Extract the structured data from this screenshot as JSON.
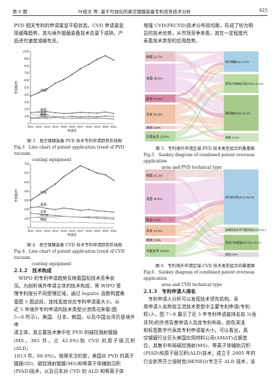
{
  "header": {
    "left": "第 6 期",
    "center": "叶俊文 等: 基于可视化的真空镀膜装备专利竞争技术分析",
    "page": "425"
  },
  "left_col": {
    "intro": [
      "PVD 相关专利的申请量呈平稳状态，CVD 申请量呈",
      "现缓降趋势，其与境外镀膜装备技术总量下成熟，产",
      "品进代速度减缓有关。"
    ],
    "fig3_caption_cn": "图 3　真空镀膜装备 PVD 技术专利申请趋势折线图",
    "fig3_caption_en_1": "Fig.3　Line chart of patent application trend of PVD vacuum",
    "fig3_caption_en_2": "coating equipment",
    "fig4_caption_cn": "图 4　真空镀膜装备 CVD 技术专利申请趋势折线图",
    "fig4_caption_en_1": "Fig.4　Line chart of patent application trend of CVD vacuum",
    "fig4_caption_en_2": "coating equipment",
    "section_title": "2.1.2　技术构成",
    "section_body": [
      "　WIPO 的专利申请趋势反映着国际技术竞争状",
      "况。为剖析境外申请主体的技术构成，将 WIPO 受",
      "理专利按分不同受理区域，通过 logistic 函数构建桑",
      "基图 5 图这段，连线宽度对应专利申请量大小。从",
      "近 5 年境外专利申请的技术类型分流情况来看(图",
      "5~6 所示)，美国、日本、韩国，以及中国台湾仍是境外申",
      "请主体，其主要技术集中在 PVD 的磁控溅射镀膜",
      "(MS，365 件，占 42.6%)和 CVD 的原子层沉积(ALD，",
      "1013 件，68.0%)，值得关注的是，美国对 PVD 的离子",
      "镀膜(ID)、磁控溅射镀膜(MS)和等离子体辅助沉积",
      "(PIAD)技术，以及日本对 CVD 的 ALD 和等离子体"
    ]
  },
  "right_col": {
    "intro": [
      "增强 CVD(PECVD)技术分布较均衡，形成了较为明",
      "显的技术优势，从市场竞争来看，其在一定程度代",
      "表着技术类型的应用趋势。"
    ],
    "fig5_caption_cn": "图 5　专利境外申请区域-PVD 技术类型组合的桑基图",
    "fig5_caption_en_1": "Fig.5　Sankey diagram of combined patent overseas application",
    "fig5_caption_en_2": "area and PVD technical type",
    "fig6_caption_cn": "图 6　专利境外申请区域-CVD 技术类型组合的桑基图",
    "fig6_caption_en_1": "Fig.6　Sankey diagram of combined patent overseas application",
    "fig6_caption_en_2": "area and CVD technical type",
    "section_title": "2.1.3　专利申请人排名",
    "section_body": [
      "　专利申请人分析可以发现技术领先机构。采",
      "用申请人名称前主流技术类型中主要专利申请(专利",
      "权)人，图 7~8 展示了近 5 年专利申请量排名前 5(含",
      "并列)的外资背景申请人及其专利布局，颜色深浅",
      "和标签数字代表其专利申请量大小。可以看出，真",
      "空镀膜行业巨头美国应用材料公司(AMAT)占据首",
      "位，其集中布局磁控溅射(MS)、等离子体辅助沉积",
      "(PIAD)和原子层沉积(ALD)技术；成立于 2005 年的",
      "行业新秀芬兰倍耐克(BENEQ)专注于 ALD 技术，该"
    ]
  },
  "fig3": {
    "chart_data": {
      "type": "line",
      "x": [
        2011,
        2012,
        2013,
        2014,
        2015,
        2016,
        2017,
        2018,
        2019,
        2020,
        2021
      ],
      "xlabel": "申请年",
      "ylabel": "专利数/件",
      "ylim": [
        0,
        1000
      ],
      "yticks": [
        0,
        100,
        200,
        300,
        400,
        500,
        600,
        700,
        800,
        900,
        1000
      ],
      "series": [
        {
          "name": "中国",
          "values": [
            380,
            430,
            480,
            560,
            610,
            680,
            760,
            820,
            890,
            940,
            880
          ],
          "color": "#3a3a3a"
        },
        {
          "name": "美国",
          "values": [
            150,
            160,
            165,
            150,
            140,
            145,
            155,
            150,
            145,
            160,
            140
          ],
          "color": "#5a5a5a"
        },
        {
          "name": "WIPO",
          "values": [
            80,
            85,
            90,
            95,
            90,
            100,
            95,
            100,
            95,
            105,
            100
          ],
          "color": "#777"
        },
        {
          "name": "韩国",
          "values": [
            70,
            75,
            70,
            80,
            75,
            70,
            72,
            68,
            75,
            70,
            60
          ],
          "color": "#999"
        },
        {
          "name": "日本",
          "values": [
            120,
            115,
            110,
            100,
            95,
            90,
            85,
            80,
            82,
            78,
            70
          ],
          "color": "#bbb"
        }
      ]
    }
  },
  "fig4": {
    "chart_data": {
      "type": "line",
      "x": [
        2011,
        2012,
        2013,
        2014,
        2015,
        2016,
        2017,
        2018,
        2019,
        2020,
        2021
      ],
      "xlabel": "申请年",
      "ylabel": "专利数/件",
      "ylim": [
        0,
        700
      ],
      "yticks": [
        0,
        100,
        200,
        300,
        400,
        500,
        600,
        700
      ],
      "series": [
        {
          "name": "中国",
          "values": [
            300,
            360,
            420,
            480,
            560,
            620,
            680,
            640,
            600,
            580,
            520
          ],
          "color": "#3a3a3a"
        },
        {
          "name": "美国",
          "values": [
            220,
            230,
            210,
            200,
            215,
            205,
            190,
            200,
            185,
            180,
            170
          ],
          "color": "#5a5a5a"
        },
        {
          "name": "日本",
          "values": [
            160,
            150,
            140,
            135,
            125,
            120,
            115,
            110,
            105,
            100,
            95
          ],
          "color": "#777"
        },
        {
          "name": "WIPO",
          "values": [
            110,
            115,
            120,
            118,
            125,
            120,
            115,
            122,
            118,
            115,
            110
          ],
          "color": "#999"
        },
        {
          "name": "韩国",
          "values": [
            60,
            65,
            62,
            58,
            55,
            60,
            57,
            55,
            52,
            50,
            48
          ],
          "color": "#bbb"
        }
      ]
    }
  },
  "fig5": {
    "left": [
      {
        "label": "韩国",
        "pct": "12.7%",
        "share": 0.127,
        "color": "#e8c3c8"
      },
      {
        "label": "美国",
        "pct": "36.0%",
        "share": 0.36,
        "color": "#e9c7e4"
      },
      {
        "label": "欧洲",
        "pct": "10.0%",
        "share": 0.1,
        "color": "#d48aa6"
      },
      {
        "label": "日本",
        "pct": "24.2%",
        "share": 0.242,
        "color": "#f0c2a8"
      },
      {
        "label": "其他",
        "pct": "3.9%",
        "share": 0.039,
        "color": "#f6c7c9"
      },
      {
        "label": "中国台湾",
        "pct": "13.0%",
        "share": 0.13,
        "color": "#b7d9a2"
      }
    ],
    "right": [
      {
        "label": "离子镀膜(ID)",
        "pct": "24.5%",
        "share": 0.245,
        "color": "#a9cfe6"
      },
      {
        "label": "等离子体辅助沉积(PIAD)",
        "pct": "22.6%",
        "share": 0.226,
        "color": "#b7dca2"
      },
      {
        "label": "磁控溅射(MS)",
        "pct": "42.6%",
        "share": 0.426,
        "color": "#a7c98a"
      },
      {
        "label": "蒸镀",
        "pct": "10.3%",
        "share": 0.103,
        "color": "#cfe2c2"
      }
    ],
    "flows": [
      [
        0,
        0,
        0.03
      ],
      [
        0,
        2,
        0.07
      ],
      [
        0,
        1,
        0.027
      ],
      [
        1,
        0,
        0.1
      ],
      [
        1,
        1,
        0.08
      ],
      [
        1,
        2,
        0.15
      ],
      [
        1,
        3,
        0.03
      ],
      [
        2,
        0,
        0.03
      ],
      [
        2,
        2,
        0.05
      ],
      [
        2,
        3,
        0.02
      ],
      [
        3,
        0,
        0.06
      ],
      [
        3,
        1,
        0.07
      ],
      [
        3,
        2,
        0.082
      ],
      [
        3,
        3,
        0.03
      ],
      [
        4,
        2,
        0.039
      ],
      [
        5,
        0,
        0.025
      ],
      [
        5,
        1,
        0.049
      ],
      [
        5,
        2,
        0.035
      ],
      [
        5,
        3,
        0.021
      ]
    ]
  },
  "fig6": {
    "left": [
      {
        "label": "韩国",
        "pct": "15.1%",
        "share": 0.151,
        "color": "#e8c3c8"
      },
      {
        "label": "美国",
        "pct": "40.5%",
        "share": 0.405,
        "color": "#e9c7e4"
      },
      {
        "label": "欧洲",
        "pct": "8.2%",
        "share": 0.082,
        "color": "#d48aa6"
      },
      {
        "label": "日本",
        "pct": "14.4%",
        "share": 0.144,
        "color": "#f0c2a8"
      },
      {
        "label": "其他",
        "pct": "5.3%",
        "share": 0.053,
        "color": "#f6c7c9"
      },
      {
        "label": "中国台湾",
        "pct": "16.5%",
        "share": 0.165,
        "color": "#b7d9a2"
      }
    ],
    "right": [
      {
        "label": "原子层沉积(ALD)",
        "pct": "68.0%",
        "share": 0.68,
        "color": "#a9cfe6"
      },
      {
        "label": "金属有机化学气相沉积(MOCVD)",
        "pct": "7.4%",
        "share": 0.074,
        "color": "#cfe2c2"
      },
      {
        "label": "等离子体增强(PECVD)",
        "pct": "19.0%",
        "share": 0.19,
        "color": "#a7c98a"
      },
      {
        "label": "其他",
        "pct": "5.6%",
        "share": 0.056,
        "color": "#d9d9d9"
      }
    ],
    "flows": [
      [
        0,
        0,
        0.1
      ],
      [
        0,
        2,
        0.04
      ],
      [
        0,
        3,
        0.011
      ],
      [
        1,
        0,
        0.28
      ],
      [
        1,
        1,
        0.03
      ],
      [
        1,
        2,
        0.07
      ],
      [
        1,
        3,
        0.025
      ],
      [
        2,
        0,
        0.055
      ],
      [
        2,
        2,
        0.017
      ],
      [
        2,
        3,
        0.01
      ],
      [
        3,
        0,
        0.095
      ],
      [
        3,
        1,
        0.02
      ],
      [
        3,
        2,
        0.029
      ],
      [
        4,
        0,
        0.035
      ],
      [
        4,
        1,
        0.008
      ],
      [
        4,
        3,
        0.01
      ],
      [
        5,
        0,
        0.115
      ],
      [
        5,
        1,
        0.016
      ],
      [
        5,
        2,
        0.034
      ]
    ]
  }
}
